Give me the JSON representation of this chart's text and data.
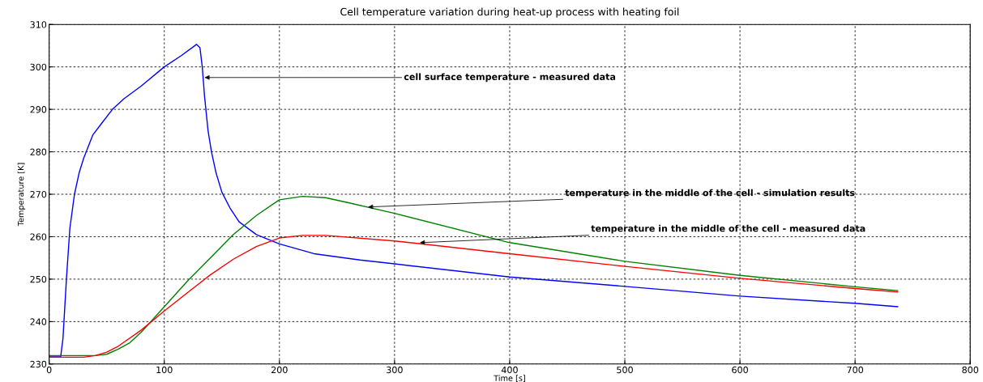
{
  "chart_data": {
    "type": "line",
    "title": "Cell temperature variation during heat-up process with heating foil",
    "xlabel": "Time [s]",
    "ylabel": "Temperature [K]",
    "xlim": [
      0,
      800
    ],
    "xticks": [
      0,
      100,
      200,
      300,
      400,
      500,
      600,
      700,
      800
    ],
    "ylim": [
      230,
      310
    ],
    "yticks": [
      230,
      240,
      250,
      260,
      270,
      280,
      290,
      300,
      310
    ],
    "grid": true,
    "line_style": "solid",
    "series": [
      {
        "color": "#0000ff",
        "x": [
          0,
          10,
          12,
          15,
          18,
          22,
          26,
          30,
          38,
          45,
          55,
          65,
          80,
          100,
          115,
          128,
          131,
          133,
          135,
          138,
          141,
          145,
          150,
          157,
          165,
          180,
          200,
          230,
          270,
          300,
          400,
          500,
          600,
          700,
          737
        ],
        "values": [
          231.7,
          231.7,
          236,
          250,
          262,
          270,
          275,
          278.5,
          284,
          286.5,
          290,
          292.5,
          295.5,
          300,
          302.7,
          305.3,
          304.5,
          300,
          293,
          285,
          280,
          275,
          270.5,
          266.8,
          263.5,
          260.5,
          258.3,
          256,
          254.5,
          253.6,
          250.5,
          248.3,
          246,
          244.3,
          243.5
        ]
      },
      {
        "color": "#008000",
        "x": [
          0,
          40,
          50,
          60,
          70,
          80,
          90,
          100,
          120,
          140,
          160,
          180,
          200,
          220,
          240,
          260,
          300,
          400,
          500,
          600,
          700,
          737
        ],
        "values": [
          232,
          232,
          232.3,
          233.5,
          235,
          237.5,
          240.5,
          243.5,
          249.5,
          255,
          260.5,
          265,
          268.7,
          269.5,
          269.2,
          268,
          265.5,
          258.6,
          254.2,
          250.9,
          248.2,
          247.3
        ]
      },
      {
        "color": "#ff0000",
        "x": [
          0,
          30,
          40,
          50,
          60,
          80,
          100,
          120,
          140,
          160,
          180,
          200,
          220,
          240,
          300,
          400,
          500,
          600,
          700,
          737
        ],
        "values": [
          231.6,
          231.6,
          232,
          232.8,
          234.2,
          238,
          242.5,
          246.8,
          251,
          254.7,
          257.7,
          259.7,
          260.3,
          260.3,
          259,
          256,
          253,
          250.2,
          247.8,
          247
        ]
      }
    ],
    "annotations": [
      {
        "text": "cell surface temperature - measured data",
        "x": 135,
        "y": 297.5
      },
      {
        "text": "temperature in the middle of the cell - simulation results",
        "x": 277,
        "y": 267
      },
      {
        "text": "temperature in the middle of the cell - measured data",
        "x": 322,
        "y": 258.6
      }
    ]
  }
}
